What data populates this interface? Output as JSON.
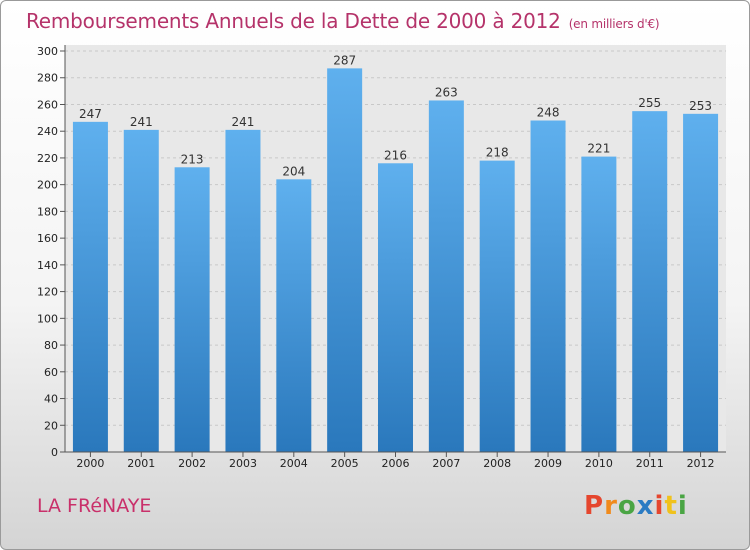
{
  "chart_data": {
    "type": "bar",
    "title": "Remboursements Annuels de la Dette de 2000 à 2012",
    "subtitle": "(en milliers d'€)",
    "categories": [
      "2000",
      "2001",
      "2002",
      "2003",
      "2004",
      "2005",
      "2006",
      "2007",
      "2008",
      "2009",
      "2010",
      "2011",
      "2012"
    ],
    "values": [
      247,
      241,
      213,
      241,
      204,
      287,
      216,
      263,
      218,
      248,
      221,
      255,
      253
    ],
    "ylim": [
      0,
      300
    ],
    "yticks": [
      0,
      20,
      40,
      60,
      80,
      100,
      120,
      140,
      160,
      180,
      200,
      220,
      240,
      260,
      280,
      300
    ],
    "grid": true,
    "bar_color": "#3b8fd6",
    "title_color": "#b5336a"
  },
  "footer": {
    "commune": "LA FRéNAYE",
    "logo_letters": [
      "P",
      "r",
      "o",
      "x",
      "i",
      "t",
      "i"
    ],
    "logo_colors": [
      "#e5462e",
      "#f08a1c",
      "#4aa544",
      "#2b7bc3",
      "#e5462e",
      "#f0c21c",
      "#4aa544"
    ]
  }
}
